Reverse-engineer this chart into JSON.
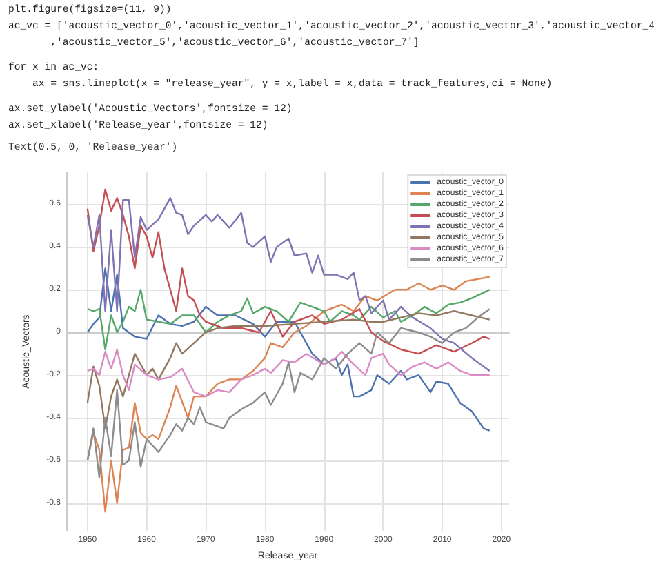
{
  "chart_data": {
    "type": "line",
    "xlabel": "Release_year",
    "ylabel": "Acoustic_Vectors",
    "annotations": [
      "plt.figure(figsize=(11, 9))",
      "ac_vc = ['acoustic_vector_0','acoustic_vector_1','acoustic_vector_2','acoustic_vector_3','acoustic_vector_4",
      "       ,'acoustic_vector_5','acoustic_vector_6','acoustic_vector_7']",
      "for x in ac_vc:",
      "    ax = sns.lineplot(x = \"release_year\", y = x,label = x,data = track_features,ci = None)",
      "ax.set_ylabel('Acoustic_Vectors',fontsize = 12)",
      "ax.set_xlabel('Release_year',fontsize = 12)",
      "Text(0.5, 0, 'Release_year')"
    ],
    "xlim": [
      1946.4,
      2021.3
    ],
    "ylim": [
      -0.93,
      0.75
    ],
    "xticks": [
      1950,
      1960,
      1970,
      1980,
      1990,
      2000,
      2010,
      2020
    ],
    "yticks": [
      -0.8,
      -0.6,
      -0.4,
      -0.2,
      0.0,
      0.2,
      0.4,
      0.6
    ],
    "grid": true,
    "legend": "top right",
    "series": [
      {
        "name": "acoustic_vector_0",
        "color": "#4c72b0",
        "x": [
          1950,
          1951,
          1952,
          1953,
          1954,
          1955,
          1956,
          1958,
          1960,
          1962,
          1964,
          1966,
          1968,
          1970,
          1972,
          1975,
          1978,
          1980,
          1982,
          1985,
          1988,
          1990,
          1992,
          1993,
          1994,
          1995,
          1996,
          1998,
          1999,
          2001,
          2003,
          2004,
          2006,
          2008,
          2009,
          2011,
          2013,
          2015,
          2017,
          2018
        ],
        "values": [
          0.0,
          0.04,
          0.07,
          0.3,
          0.1,
          0.27,
          0.02,
          -0.02,
          -0.03,
          0.08,
          0.04,
          0.03,
          0.05,
          0.12,
          0.08,
          0.08,
          0.04,
          -0.02,
          0.05,
          0.05,
          -0.1,
          -0.15,
          -0.12,
          -0.2,
          -0.15,
          -0.3,
          -0.3,
          -0.27,
          -0.2,
          -0.24,
          -0.18,
          -0.22,
          -0.2,
          -0.28,
          -0.23,
          -0.24,
          -0.33,
          -0.37,
          -0.45,
          -0.46
        ]
      },
      {
        "name": "acoustic_vector_1",
        "color": "#dd8452",
        "x": [
          1950,
          1951,
          1952,
          1953,
          1954,
          1955,
          1956,
          1957,
          1958,
          1959,
          1960,
          1961,
          1962,
          1964,
          1965,
          1967,
          1968,
          1970,
          1972,
          1974,
          1976,
          1978,
          1980,
          1981,
          1983,
          1985,
          1987,
          1990,
          1993,
          1995,
          1997,
          1999,
          2002,
          2004,
          2006,
          2008,
          2010,
          2012,
          2014,
          2016,
          2018
        ],
        "values": [
          -0.6,
          -0.47,
          -0.55,
          -0.84,
          -0.6,
          -0.8,
          -0.55,
          -0.54,
          -0.33,
          -0.47,
          -0.5,
          -0.48,
          -0.5,
          -0.35,
          -0.25,
          -0.4,
          -0.3,
          -0.3,
          -0.24,
          -0.22,
          -0.22,
          -0.18,
          -0.12,
          -0.05,
          -0.07,
          0.0,
          0.03,
          0.1,
          0.13,
          0.1,
          0.17,
          0.15,
          0.2,
          0.2,
          0.23,
          0.2,
          0.22,
          0.2,
          0.24,
          0.25,
          0.26
        ]
      },
      {
        "name": "acoustic_vector_2",
        "color": "#55a868",
        "x": [
          1950,
          1951,
          1952,
          1953,
          1954,
          1955,
          1956,
          1957,
          1958,
          1959,
          1960,
          1962,
          1964,
          1966,
          1968,
          1970,
          1972,
          1974,
          1976,
          1977,
          1978,
          1980,
          1982,
          1984,
          1986,
          1988,
          1990,
          1991,
          1993,
          1995,
          1996,
          1998,
          2000,
          2002,
          2003,
          2005,
          2007,
          2009,
          2011,
          2013,
          2015,
          2018
        ],
        "values": [
          0.11,
          0.1,
          0.11,
          -0.08,
          0.08,
          0.0,
          0.05,
          0.12,
          0.1,
          0.2,
          0.06,
          0.05,
          0.04,
          0.08,
          0.08,
          0.0,
          0.05,
          0.08,
          0.1,
          0.16,
          0.09,
          0.12,
          0.1,
          0.05,
          0.14,
          0.12,
          0.1,
          0.05,
          0.1,
          0.08,
          0.06,
          0.12,
          0.07,
          0.1,
          0.05,
          0.08,
          0.12,
          0.09,
          0.13,
          0.14,
          0.16,
          0.2
        ]
      },
      {
        "name": "acoustic_vector_3",
        "color": "#c44e52",
        "x": [
          1950,
          1951,
          1952,
          1953,
          1954,
          1955,
          1956,
          1957,
          1958,
          1959,
          1960,
          1961,
          1962,
          1963,
          1964,
          1965,
          1966,
          1967,
          1968,
          1969,
          1970,
          1973,
          1976,
          1979,
          1981,
          1983,
          1985,
          1988,
          1990,
          1993,
          1996,
          1998,
          2000,
          2003,
          2006,
          2009,
          2012,
          2015,
          2017,
          2018
        ],
        "values": [
          0.58,
          0.38,
          0.5,
          0.67,
          0.57,
          0.63,
          0.55,
          0.45,
          0.3,
          0.5,
          0.45,
          0.35,
          0.47,
          0.3,
          0.2,
          0.1,
          0.3,
          0.17,
          0.15,
          0.08,
          0.05,
          0.02,
          0.02,
          0.0,
          0.1,
          -0.02,
          0.05,
          0.08,
          0.04,
          0.06,
          0.11,
          0.0,
          -0.04,
          -0.08,
          -0.1,
          -0.06,
          -0.09,
          -0.05,
          -0.02,
          -0.03
        ]
      },
      {
        "name": "acoustic_vector_4",
        "color": "#8172b3",
        "x": [
          1950,
          1951,
          1952,
          1953,
          1954,
          1955,
          1956,
          1957,
          1958,
          1959,
          1960,
          1962,
          1964,
          1965,
          1966,
          1967,
          1968,
          1970,
          1971,
          1972,
          1974,
          1976,
          1977,
          1978,
          1980,
          1981,
          1982,
          1984,
          1985,
          1987,
          1988,
          1989,
          1990,
          1992,
          1994,
          1995,
          1996,
          1997,
          1998,
          2000,
          2001,
          2003,
          2005,
          2008,
          2010,
          2012,
          2015,
          2018
        ],
        "values": [
          0.55,
          0.4,
          0.55,
          0.1,
          0.48,
          0.1,
          0.62,
          0.62,
          0.35,
          0.54,
          0.48,
          0.53,
          0.63,
          0.56,
          0.55,
          0.46,
          0.5,
          0.55,
          0.52,
          0.55,
          0.49,
          0.56,
          0.42,
          0.4,
          0.45,
          0.33,
          0.4,
          0.44,
          0.36,
          0.37,
          0.28,
          0.36,
          0.27,
          0.27,
          0.25,
          0.28,
          0.15,
          0.17,
          0.09,
          0.15,
          0.06,
          0.12,
          0.07,
          0.02,
          -0.03,
          -0.05,
          -0.12,
          -0.18
        ]
      },
      {
        "name": "acoustic_vector_5",
        "color": "#937860",
        "x": [
          1950,
          1951,
          1952,
          1953,
          1954,
          1955,
          1956,
          1958,
          1960,
          1961,
          1962,
          1964,
          1965,
          1966,
          1968,
          1970,
          1972,
          1975,
          1980,
          1985,
          1990,
          1995,
          1998,
          2000,
          2003,
          2006,
          2009,
          2012,
          2015,
          2018
        ],
        "values": [
          -0.33,
          -0.16,
          -0.25,
          -0.45,
          -0.3,
          -0.22,
          -0.3,
          -0.1,
          -0.2,
          -0.17,
          -0.22,
          -0.12,
          -0.05,
          -0.1,
          -0.05,
          0.0,
          0.02,
          0.03,
          0.03,
          0.04,
          0.05,
          0.06,
          0.05,
          0.05,
          0.07,
          0.09,
          0.08,
          0.1,
          0.08,
          0.06
        ]
      },
      {
        "name": "acoustic_vector_6",
        "color": "#da8bc3",
        "x": [
          1950,
          1951,
          1952,
          1953,
          1954,
          1955,
          1956,
          1957,
          1958,
          1960,
          1962,
          1964,
          1966,
          1968,
          1970,
          1972,
          1974,
          1976,
          1978,
          1980,
          1981,
          1983,
          1985,
          1987,
          1990,
          1992,
          1993,
          1995,
          1997,
          1998,
          2000,
          2001,
          2003,
          2005,
          2007,
          2009,
          2011,
          2013,
          2015,
          2018
        ],
        "values": [
          -0.18,
          -0.17,
          -0.2,
          -0.09,
          -0.17,
          -0.08,
          -0.2,
          -0.27,
          -0.15,
          -0.2,
          -0.22,
          -0.21,
          -0.17,
          -0.28,
          -0.3,
          -0.27,
          -0.28,
          -0.22,
          -0.2,
          -0.17,
          -0.19,
          -0.13,
          -0.14,
          -0.1,
          -0.15,
          -0.12,
          -0.09,
          -0.15,
          -0.2,
          -0.12,
          -0.1,
          -0.15,
          -0.2,
          -0.16,
          -0.14,
          -0.17,
          -0.14,
          -0.18,
          -0.2,
          -0.2
        ]
      },
      {
        "name": "acoustic_vector_7",
        "color": "#8c8c8c",
        "x": [
          1950,
          1951,
          1952,
          1953,
          1954,
          1955,
          1956,
          1957,
          1958,
          1959,
          1960,
          1962,
          1964,
          1965,
          1966,
          1967,
          1968,
          1969,
          1970,
          1973,
          1974,
          1976,
          1978,
          1980,
          1981,
          1983,
          1984,
          1985,
          1986,
          1988,
          1990,
          1992,
          1994,
          1996,
          1998,
          1999,
          2001,
          2003,
          2006,
          2008,
          2010,
          2012,
          2014,
          2016,
          2018
        ],
        "values": [
          -0.6,
          -0.45,
          -0.68,
          -0.4,
          -0.58,
          -0.27,
          -0.62,
          -0.6,
          -0.42,
          -0.63,
          -0.5,
          -0.56,
          -0.48,
          -0.43,
          -0.46,
          -0.4,
          -0.43,
          -0.35,
          -0.42,
          -0.45,
          -0.4,
          -0.36,
          -0.33,
          -0.28,
          -0.34,
          -0.24,
          -0.14,
          -0.28,
          -0.19,
          -0.22,
          -0.12,
          -0.17,
          -0.1,
          -0.05,
          -0.1,
          0.0,
          -0.05,
          0.02,
          0.0,
          -0.02,
          -0.05,
          0.0,
          0.02,
          0.07,
          0.11
        ]
      }
    ]
  }
}
